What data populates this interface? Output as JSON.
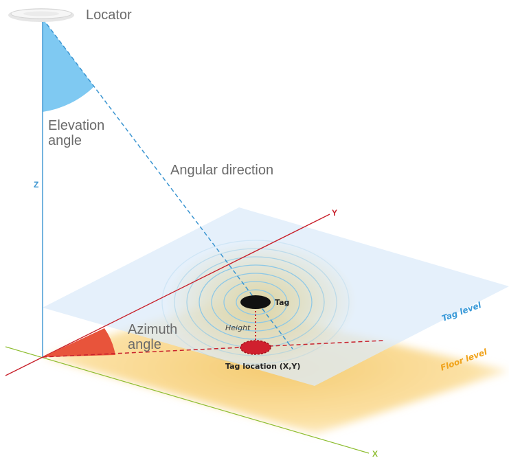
{
  "labels": {
    "locator": "Locator",
    "elevation_line1": "Elevation",
    "elevation_line2": "angle",
    "angular_direction": "Angular direction",
    "azimuth_line1": "Azimuth",
    "azimuth_line2": "angle",
    "tag": "Tag",
    "height": "Height",
    "tag_location": "Tag location (X,Y)",
    "tag_level": "Tag level",
    "floor_level": "Floor level"
  },
  "axes": {
    "x": "X",
    "y": "Y",
    "z": "Z"
  },
  "colors": {
    "z_axis": "#3b95d1",
    "y_axis": "#c8202b",
    "x_axis": "#8dbd2f",
    "elevation_fill": "#7fc9f2",
    "azimuth_fill": "#e8543b",
    "tag_plane": "#e6f0fb",
    "floor_plane": "#fbd98c",
    "tag_level_text": "#3a9ad9",
    "floor_level_text": "#f0a21a",
    "tag_dot": "#111111",
    "location_dot": "#d0202e"
  }
}
